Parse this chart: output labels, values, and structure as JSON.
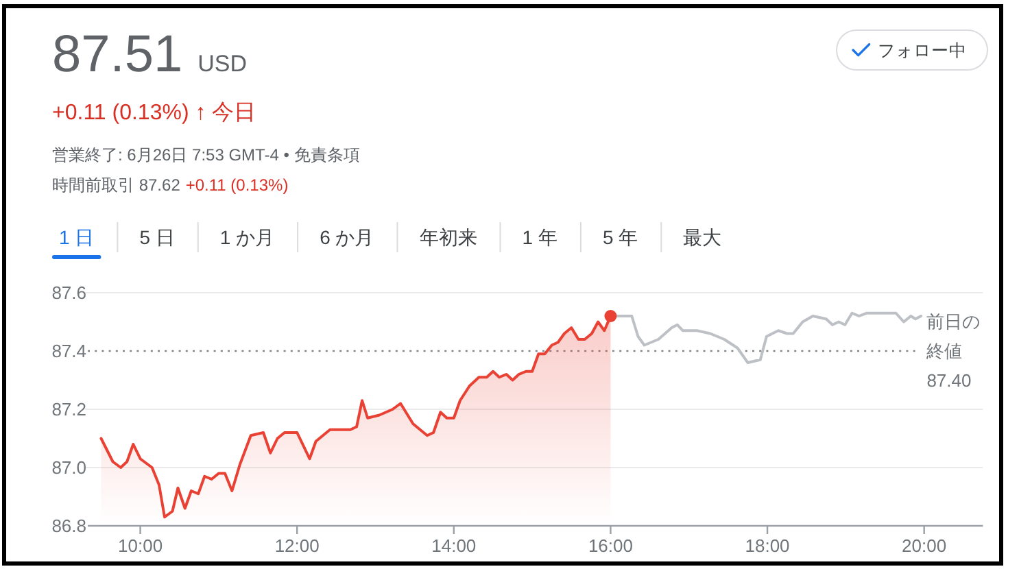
{
  "chart_data": {
    "type": "line",
    "title": "87.51 USD",
    "subtitle": "+0.11 (0.13%) ↑ 今日",
    "annotations": [
      "営業終了: 6月26日 7:53 GMT-4 • 免責条項",
      "時間前取引 87.62",
      "+0.11 (0.13%)",
      "フォロー中",
      "1 日",
      "5 日",
      "1 か月",
      "6 か月",
      "年初来",
      "1 年",
      "5 年",
      "最大"
    ],
    "series": [
      {
        "type": "area",
        "color": "#e94235",
        "x": [
          9.5,
          9.65,
          9.75,
          9.83,
          9.91,
          10.0,
          10.15,
          10.24,
          10.31,
          10.41,
          10.48,
          10.57,
          10.65,
          10.74,
          10.82,
          10.91,
          11.0,
          11.08,
          11.17,
          11.27,
          11.41,
          11.57,
          11.66,
          11.75,
          11.84,
          12.0,
          12.09,
          12.16,
          12.24,
          12.42,
          12.68,
          12.76,
          12.83,
          12.9,
          13.05,
          13.22,
          13.32,
          13.48,
          13.66,
          13.74,
          13.83,
          13.91,
          14.0,
          14.08,
          14.2,
          14.32,
          14.42,
          14.5,
          14.58,
          14.67,
          14.75,
          14.83,
          14.92,
          15.0,
          15.08,
          15.16,
          15.25,
          15.33,
          15.41,
          15.5,
          15.59,
          15.67,
          15.76,
          15.84,
          15.92,
          16.0
        ],
        "values": [
          87.1,
          87.02,
          87.0,
          87.02,
          87.08,
          87.03,
          87.0,
          86.94,
          86.83,
          86.85,
          86.93,
          86.86,
          86.92,
          86.91,
          86.97,
          86.96,
          86.98,
          86.98,
          86.92,
          87.01,
          87.11,
          87.12,
          87.05,
          87.1,
          87.12,
          87.12,
          87.07,
          87.03,
          87.09,
          87.13,
          87.13,
          87.14,
          87.23,
          87.17,
          87.18,
          87.2,
          87.22,
          87.15,
          87.11,
          87.12,
          87.19,
          87.17,
          87.17,
          87.23,
          87.28,
          87.31,
          87.31,
          87.33,
          87.31,
          87.32,
          87.3,
          87.32,
          87.33,
          87.33,
          87.39,
          87.39,
          87.42,
          87.43,
          87.46,
          87.48,
          87.44,
          87.44,
          87.46,
          87.5,
          87.47,
          87.52
        ]
      },
      {
        "color": "#bdc1c6",
        "x": [
          16.0,
          16.27,
          16.35,
          16.43,
          16.61,
          16.78,
          16.85,
          16.92,
          17.1,
          17.27,
          17.45,
          17.62,
          17.75,
          17.91,
          17.99,
          18.14,
          18.25,
          18.33,
          18.45,
          18.58,
          18.75,
          18.83,
          18.91,
          18.99,
          19.08,
          19.17,
          19.27,
          19.43,
          19.64,
          19.74,
          19.83,
          19.89,
          19.96
        ],
        "values": [
          87.52,
          87.52,
          87.45,
          87.42,
          87.44,
          87.48,
          87.49,
          87.47,
          87.47,
          87.46,
          87.44,
          87.41,
          87.36,
          87.37,
          87.45,
          87.47,
          87.46,
          87.46,
          87.5,
          87.52,
          87.51,
          87.49,
          87.5,
          87.49,
          87.53,
          87.52,
          87.53,
          87.53,
          87.53,
          87.5,
          87.52,
          87.51,
          87.52
        ]
      },
      {
        "type": "scatter",
        "color": "#e94235",
        "x": [
          16.0
        ],
        "values": [
          87.52
        ]
      }
    ],
    "xlim": [
      9.33,
      20.75
    ],
    "ylim": [
      86.8,
      87.6
    ],
    "xticks": [
      {
        "value": 10,
        "label": "10:00"
      },
      {
        "value": 12,
        "label": "12:00"
      },
      {
        "value": 14,
        "label": "14:00"
      },
      {
        "value": 16,
        "label": "16:00"
      },
      {
        "value": 18,
        "label": "18:00"
      },
      {
        "value": 20,
        "label": "20:00"
      }
    ],
    "yticks": [
      86.8,
      {
        "value": 87.0,
        "label": "87.0"
      },
      87.2,
      87.4,
      87.6
    ],
    "grid": "y",
    "ref_lines": [
      {
        "axis": "y",
        "value": 87.4,
        "label": "前日の終値 87.40",
        "color": "#80868b",
        "line_style": "dotted"
      }
    ]
  }
}
